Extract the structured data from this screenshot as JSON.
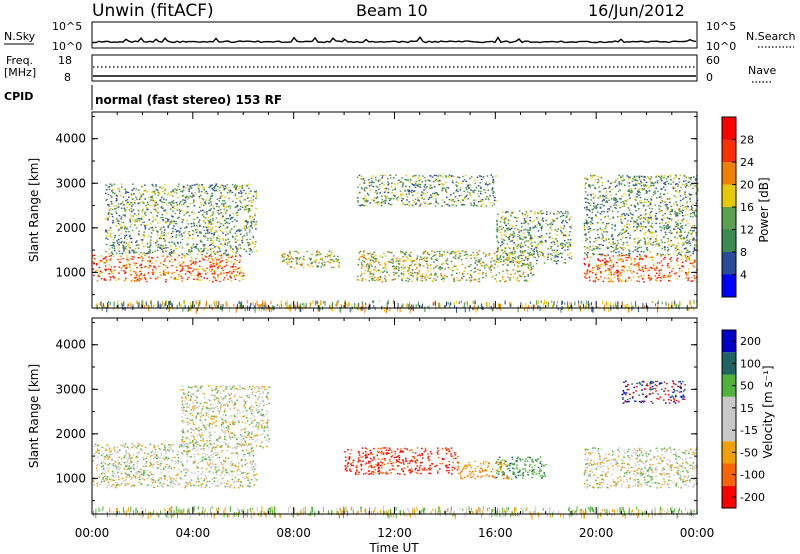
{
  "header": {
    "station": "Unwin (fitACF)",
    "beam": "Beam 10",
    "date": "16/Jun/2012"
  },
  "sky_panel": {
    "left_label": "N.Sky",
    "right_label": "N.Search",
    "left_ticks": [
      "10^5",
      "10^0"
    ],
    "right_ticks": [
      "10^5",
      "10^0"
    ]
  },
  "freq_panel": {
    "left_label_1": "Freq.",
    "left_label_2": "[MHz]",
    "left_ticks": [
      "18",
      "8"
    ],
    "right_label": "Nave",
    "right_ticks": [
      "60",
      "0"
    ]
  },
  "cpid": {
    "label": "CPID",
    "value": "normal (fast stereo) 153 RF"
  },
  "colors": {
    "power": [
      "#0000ff",
      "#2a4a9a",
      "#3c8c50",
      "#5aa050",
      "#e8c800",
      "#f08000",
      "#ff3000",
      "#ff0000"
    ],
    "velocity": [
      "#0000c8",
      "#1e6464",
      "#50b43c",
      "#c8c8c8",
      "#c8c8c8",
      "#f0a000",
      "#ff6400",
      "#ff0000"
    ]
  },
  "chart_data": [
    {
      "type": "heatmap",
      "panel": "power",
      "ylabel": "Slant Range [km]",
      "y_ticks": [
        "1000",
        "2000",
        "3000",
        "4000"
      ],
      "ylim": [
        200,
        4600
      ],
      "x_ticks": [
        "00:00",
        "04:00",
        "08:00",
        "12:00",
        "16:00",
        "20:00",
        "00:00"
      ],
      "xlim": [
        0,
        24
      ],
      "colorbar": {
        "label": "Power [dB]",
        "ticks": [
          "4",
          "8",
          "12",
          "16",
          "20",
          "24",
          "28"
        ],
        "range": [
          0,
          32
        ]
      },
      "bands": [
        {
          "t": [
            0.0,
            6.0
          ],
          "r": [
            800,
            1400
          ],
          "level": "high"
        },
        {
          "t": [
            0.5,
            6.5
          ],
          "r": [
            1400,
            3000
          ],
          "level": "low"
        },
        {
          "t": [
            7.5,
            9.8
          ],
          "r": [
            1100,
            1500
          ],
          "level": "mid"
        },
        {
          "t": [
            10.5,
            17.5
          ],
          "r": [
            800,
            1500
          ],
          "level": "mid"
        },
        {
          "t": [
            10.5,
            16.0
          ],
          "r": [
            2500,
            3200
          ],
          "level": "low"
        },
        {
          "t": [
            16.0,
            19.0
          ],
          "r": [
            1200,
            2400
          ],
          "level": "low"
        },
        {
          "t": [
            19.5,
            24.0
          ],
          "r": [
            800,
            1400
          ],
          "level": "high"
        },
        {
          "t": [
            19.5,
            24.0
          ],
          "r": [
            1400,
            3200
          ],
          "level": "low"
        }
      ]
    },
    {
      "type": "heatmap",
      "panel": "velocity",
      "ylabel": "Slant Range [km]",
      "y_ticks": [
        "1000",
        "2000",
        "3000",
        "4000"
      ],
      "ylim": [
        200,
        4600
      ],
      "x_ticks": [
        "00:00",
        "04:00",
        "08:00",
        "12:00",
        "16:00",
        "20:00",
        "00:00"
      ],
      "xlim": [
        0,
        24
      ],
      "xlabel": "Time UT",
      "colorbar": {
        "label": "Velocity [m s⁻¹]",
        "ticks": [
          "200",
          "100",
          "50",
          "15",
          "-15",
          "-50",
          "-100",
          "-200"
        ],
        "range": [
          -250,
          250
        ]
      },
      "bands": [
        {
          "t": [
            0.0,
            6.5
          ],
          "r": [
            800,
            1800
          ],
          "level": "ground"
        },
        {
          "t": [
            3.5,
            7.0
          ],
          "r": [
            1700,
            3100
          ],
          "level": "ground"
        },
        {
          "t": [
            10.0,
            14.5
          ],
          "r": [
            1100,
            1700
          ],
          "level": "red"
        },
        {
          "t": [
            14.5,
            16.5
          ],
          "r": [
            1000,
            1400
          ],
          "level": "orange"
        },
        {
          "t": [
            16.0,
            18.0
          ],
          "r": [
            1000,
            1500
          ],
          "level": "green"
        },
        {
          "t": [
            19.5,
            24.0
          ],
          "r": [
            800,
            1700
          ],
          "level": "ground"
        },
        {
          "t": [
            21.0,
            23.5
          ],
          "r": [
            2700,
            3200
          ],
          "level": "blue"
        }
      ]
    }
  ]
}
